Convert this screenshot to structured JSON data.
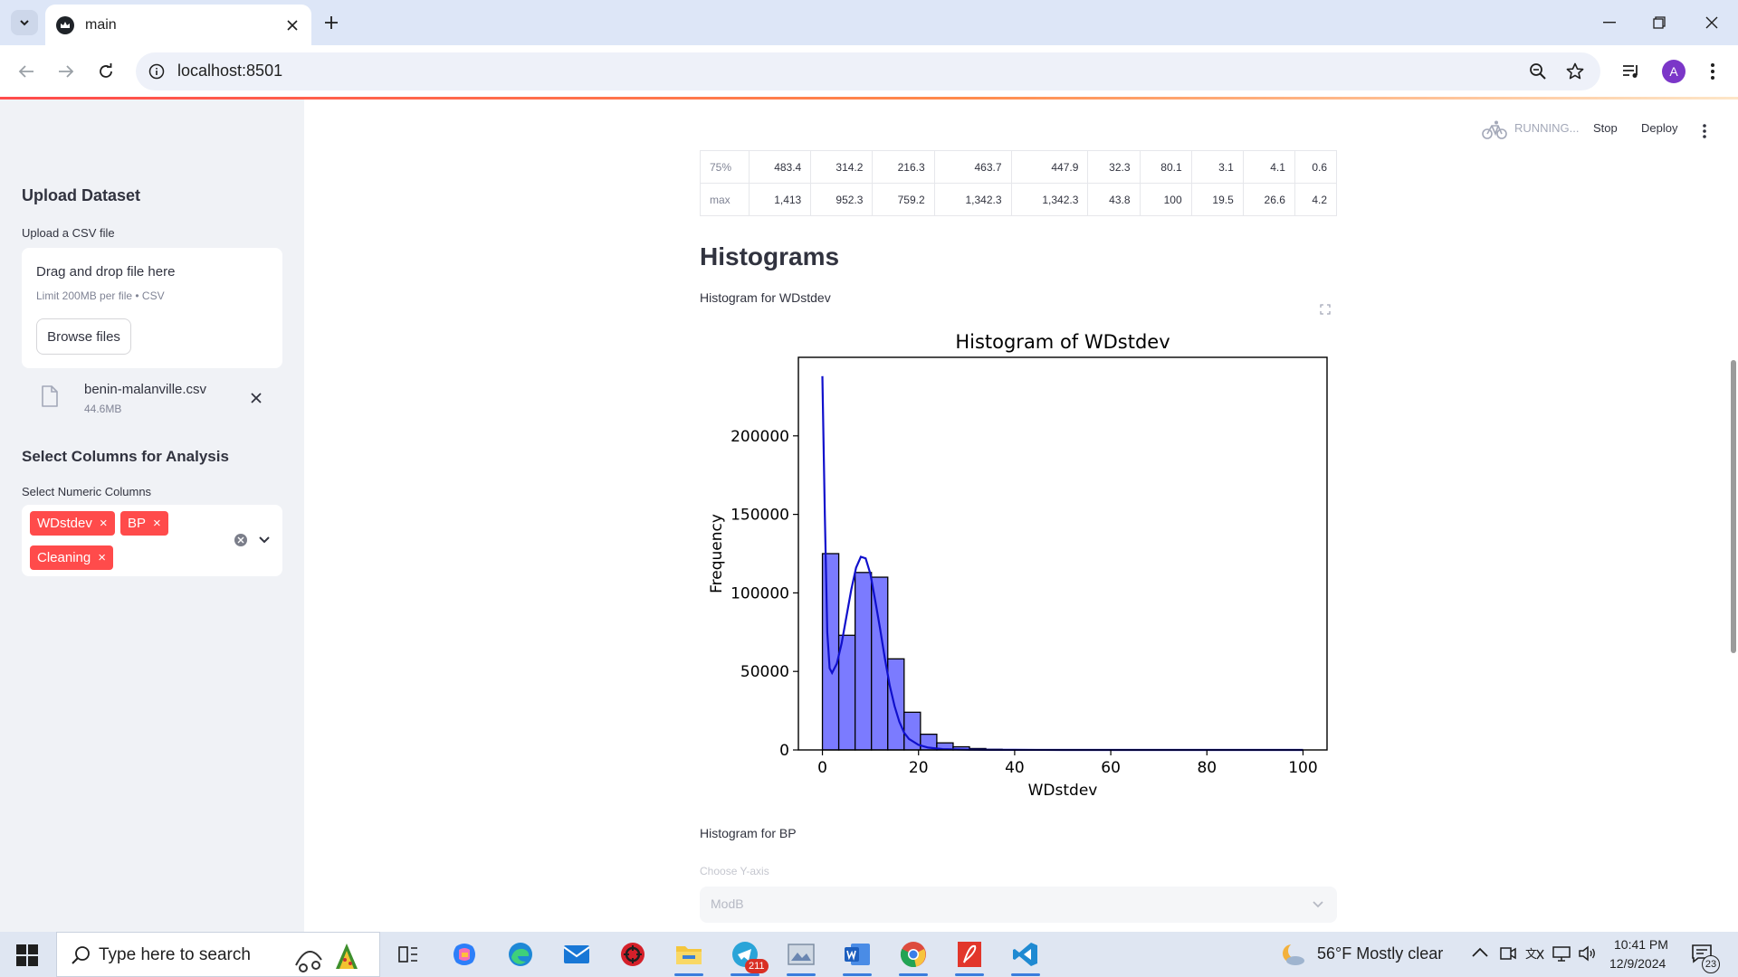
{
  "browser": {
    "tab_title": "main",
    "url": "localhost:8501",
    "profile_initial": "A"
  },
  "app_header": {
    "status": "RUNNING...",
    "stop_label": "Stop",
    "deploy_label": "Deploy"
  },
  "sidebar": {
    "upload_heading": "Upload Dataset",
    "upload_label": "Upload a CSV file",
    "dropzone_title": "Drag and drop file here",
    "dropzone_limit": "Limit 200MB per file • CSV",
    "browse_label": "Browse files",
    "file_name": "benin-malanville.csv",
    "file_size": "44.6MB",
    "columns_heading": "Select Columns for Analysis",
    "columns_label": "Select Numeric Columns",
    "selected_columns": [
      "WDstdev",
      "BP",
      "Cleaning"
    ]
  },
  "stats_table": {
    "rows": [
      {
        "name": "75%",
        "values": [
          "483.4",
          "314.2",
          "216.3",
          "463.7",
          "447.9",
          "32.3",
          "80.1",
          "3.1",
          "4.1",
          "0.6"
        ]
      },
      {
        "name": "max",
        "values": [
          "1,413",
          "952.3",
          "759.2",
          "1,342.3",
          "1,342.3",
          "43.8",
          "100",
          "19.5",
          "26.6",
          "4.2"
        ]
      }
    ]
  },
  "main": {
    "section_heading": "Histograms",
    "hist1_caption": "Histogram for WDstdev",
    "hist2_caption": "Histogram for BP",
    "choose_y_label": "Choose Y-axis",
    "choose_y_value": "ModB"
  },
  "chart_data": {
    "type": "bar",
    "title": "Histogram of WDstdev",
    "xlabel": "WDstdev",
    "ylabel": "Frequency",
    "xlim": [
      -5,
      105
    ],
    "ylim": [
      0,
      250000
    ],
    "xticks": [
      0,
      20,
      40,
      60,
      80,
      100
    ],
    "yticks": [
      0,
      50000,
      100000,
      150000,
      200000
    ],
    "bin_width": 3.4,
    "bin_starts": [
      0,
      3.4,
      6.8,
      10.2,
      13.6,
      17.0,
      20.4,
      23.8,
      27.2,
      30.6,
      34.0,
      37.4
    ],
    "values": [
      125000,
      73000,
      113000,
      110000,
      58000,
      24000,
      10000,
      4500,
      2000,
      900,
      400,
      200
    ],
    "kde": {
      "x": [
        0,
        0.5,
        1,
        1.5,
        2,
        3,
        4,
        5,
        6,
        7,
        8,
        9,
        10,
        11,
        12,
        13,
        14,
        15,
        16,
        17,
        18,
        20,
        22,
        25,
        30,
        35,
        40,
        50,
        60,
        80,
        100
      ],
      "y": [
        238000,
        150000,
        75000,
        52000,
        49000,
        55000,
        68000,
        85000,
        102000,
        116000,
        123000,
        122000,
        112000,
        95000,
        77000,
        58000,
        41000,
        28000,
        18000,
        11000,
        7000,
        3200,
        1500,
        500,
        150,
        60,
        30,
        10,
        5,
        2,
        1
      ]
    },
    "bar_color": "#7b7bff",
    "line_color": "#1010cc",
    "grid": false,
    "legend": "none"
  },
  "taskbar": {
    "search_placeholder": "Type here to search",
    "telegram_badge": "211",
    "weather": "56°F  Mostly clear",
    "time": "10:41 PM",
    "date": "12/9/2024",
    "notification_count": "23"
  },
  "colors": {
    "accent": "#ff4b4b",
    "sidebar_bg": "#f0f2f6",
    "text": "#31333f"
  }
}
